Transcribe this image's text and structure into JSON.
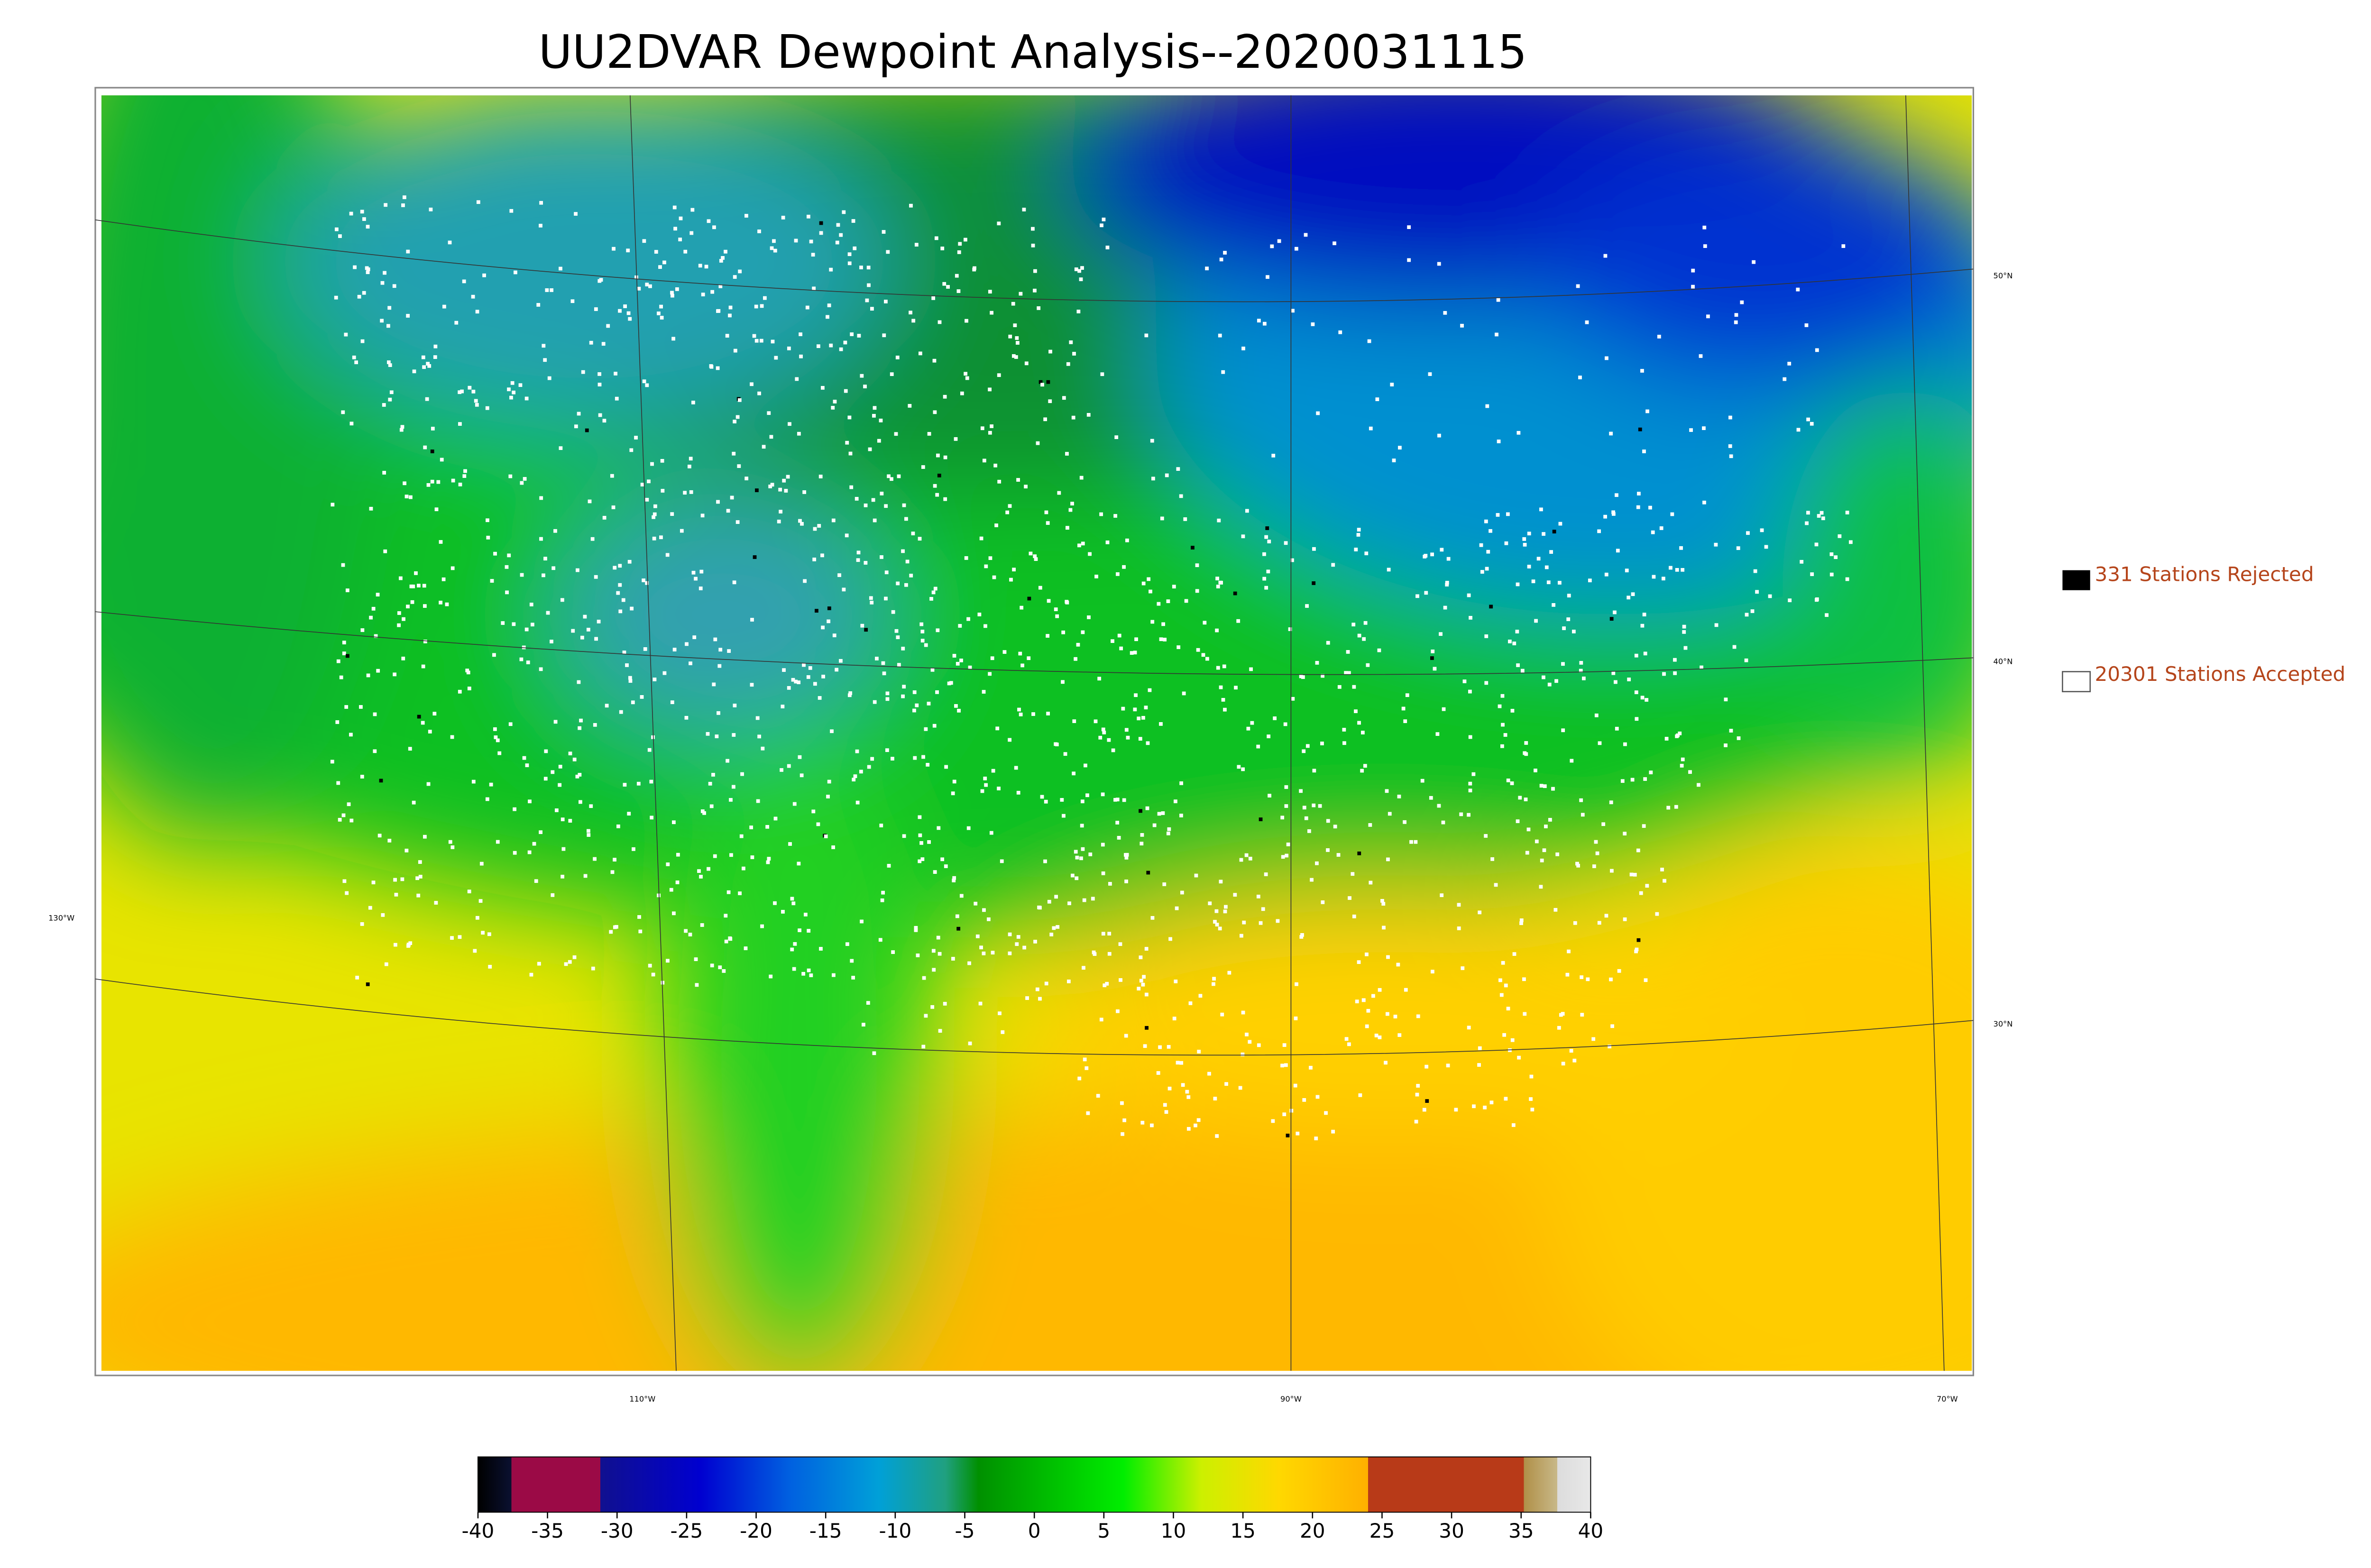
{
  "title": "UU2DVAR Dewpoint Analysis--2020031115",
  "legend": [
    {
      "label": "331 Stations Rejected"
    },
    {
      "label": "20301 Stations Accepted"
    }
  ],
  "latitude_labels": [
    "50°N",
    "40°N",
    "30°N"
  ],
  "longitude_labels": [
    "130°W",
    "110°W",
    "90°W",
    "70°W"
  ],
  "colorbar": {
    "lim": [
      -40,
      40
    ],
    "ticks": [
      -40,
      -35,
      -30,
      -25,
      -20,
      -15,
      -10,
      -5,
      0,
      5,
      10,
      15,
      20,
      25,
      30,
      35,
      40
    ]
  }
}
